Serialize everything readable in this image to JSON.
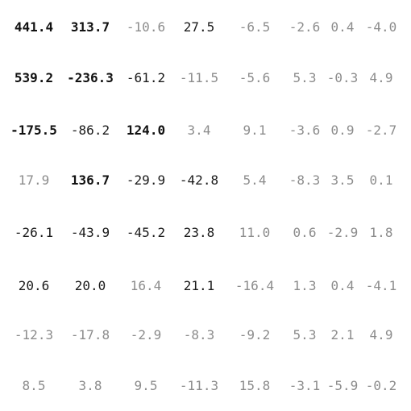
{
  "matrix": {
    "rows": [
      [
        {
          "text": "441.4",
          "tone": "dark"
        },
        {
          "text": "313.7",
          "tone": "dark"
        },
        {
          "text": "-10.6",
          "tone": "light"
        },
        {
          "text": "27.5",
          "tone": "mid"
        },
        {
          "text": "-6.5",
          "tone": "light"
        },
        {
          "text": "-2.6",
          "tone": "light"
        },
        {
          "text": "0.4",
          "tone": "light"
        },
        {
          "text": "-4.0",
          "tone": "light"
        }
      ],
      [
        {
          "text": "539.2",
          "tone": "dark"
        },
        {
          "text": "-236.3",
          "tone": "dark"
        },
        {
          "text": "-61.2",
          "tone": "mid"
        },
        {
          "text": "-11.5",
          "tone": "light"
        },
        {
          "text": "-5.6",
          "tone": "light"
        },
        {
          "text": "5.3",
          "tone": "light"
        },
        {
          "text": "-0.3",
          "tone": "light"
        },
        {
          "text": "4.9",
          "tone": "light"
        }
      ],
      [
        {
          "text": "-175.5",
          "tone": "dark"
        },
        {
          "text": "-86.2",
          "tone": "mid"
        },
        {
          "text": "124.0",
          "tone": "dark"
        },
        {
          "text": "3.4",
          "tone": "light"
        },
        {
          "text": "9.1",
          "tone": "light"
        },
        {
          "text": "-3.6",
          "tone": "light"
        },
        {
          "text": "0.9",
          "tone": "light"
        },
        {
          "text": "-2.7",
          "tone": "light"
        }
      ],
      [
        {
          "text": "17.9",
          "tone": "light"
        },
        {
          "text": "136.7",
          "tone": "dark"
        },
        {
          "text": "-29.9",
          "tone": "mid"
        },
        {
          "text": "-42.8",
          "tone": "mid"
        },
        {
          "text": "5.4",
          "tone": "light"
        },
        {
          "text": "-8.3",
          "tone": "light"
        },
        {
          "text": "3.5",
          "tone": "light"
        },
        {
          "text": "0.1",
          "tone": "light"
        }
      ],
      [
        {
          "text": "-26.1",
          "tone": "mid"
        },
        {
          "text": "-43.9",
          "tone": "mid"
        },
        {
          "text": "-45.2",
          "tone": "mid"
        },
        {
          "text": "23.8",
          "tone": "mid"
        },
        {
          "text": "11.0",
          "tone": "light"
        },
        {
          "text": "0.6",
          "tone": "light"
        },
        {
          "text": "-2.9",
          "tone": "light"
        },
        {
          "text": "1.8",
          "tone": "light"
        }
      ],
      [
        {
          "text": "20.6",
          "tone": "mid"
        },
        {
          "text": "20.0",
          "tone": "mid"
        },
        {
          "text": "16.4",
          "tone": "light"
        },
        {
          "text": "21.1",
          "tone": "mid"
        },
        {
          "text": "-16.4",
          "tone": "light"
        },
        {
          "text": "1.3",
          "tone": "light"
        },
        {
          "text": "0.4",
          "tone": "light"
        },
        {
          "text": "-4.1",
          "tone": "light"
        }
      ],
      [
        {
          "text": "-12.3",
          "tone": "light"
        },
        {
          "text": "-17.8",
          "tone": "light"
        },
        {
          "text": "-2.9",
          "tone": "light"
        },
        {
          "text": "-8.3",
          "tone": "light"
        },
        {
          "text": "-9.2",
          "tone": "light"
        },
        {
          "text": "5.3",
          "tone": "light"
        },
        {
          "text": "2.1",
          "tone": "light"
        },
        {
          "text": "4.9",
          "tone": "light"
        }
      ],
      [
        {
          "text": "8.5",
          "tone": "light"
        },
        {
          "text": "3.8",
          "tone": "light"
        },
        {
          "text": "9.5",
          "tone": "light"
        },
        {
          "text": "-11.3",
          "tone": "light"
        },
        {
          "text": "15.8",
          "tone": "light"
        },
        {
          "text": "-3.1",
          "tone": "light"
        },
        {
          "text": "-5.9",
          "tone": "light"
        },
        {
          "text": "-0.2",
          "tone": "light"
        }
      ]
    ]
  }
}
